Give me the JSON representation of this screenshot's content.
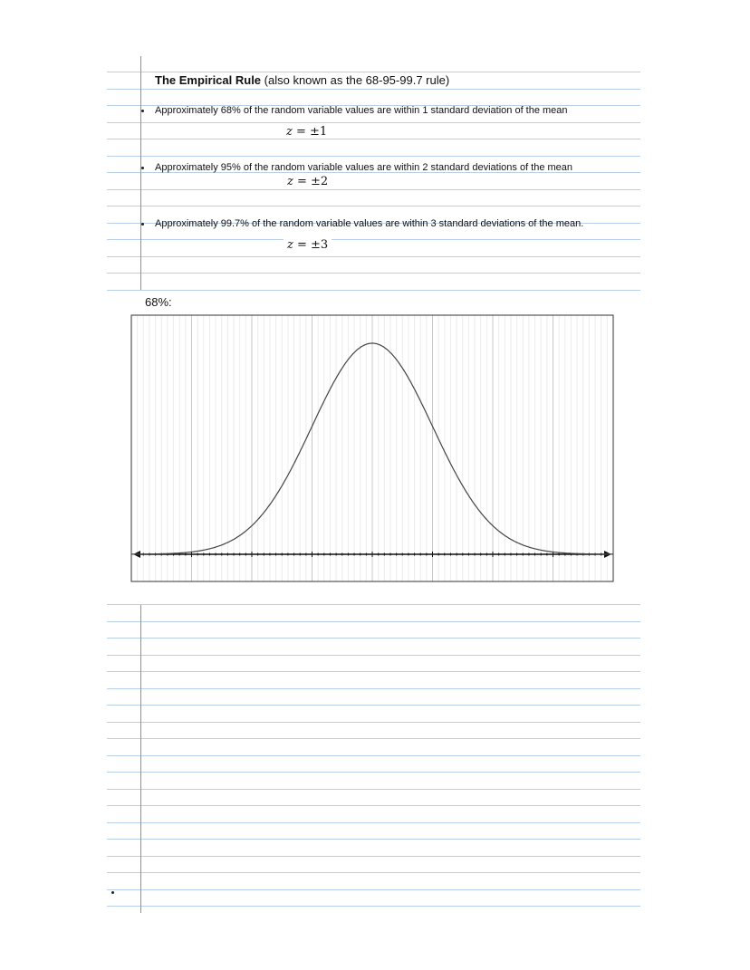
{
  "document": {
    "title_bold": "The Empirical Rule",
    "title_rest": " (also known as the 68-95-99.7 rule)",
    "items": [
      {
        "text": "Approximately 68% of the random variable values are within 1 standard deviation of the mean",
        "z_var": "z",
        "z_rest": " = ±1"
      },
      {
        "text": "Approximately 95% of the random variable values are within 2 standard deviations of the mean",
        "z_var": "z",
        "z_rest": " = ±2"
      },
      {
        "text": "Approximately 99.7% of the random variable values are within 3 standard deviations of the mean.",
        "z_var": "z",
        "z_rest": " = ±3"
      }
    ],
    "figure_label": "68%:"
  },
  "colors": {
    "rule_line": "#b9cfe6",
    "margin_line": "#e0706a",
    "curve": "#444444",
    "grid": "#d0d0d0"
  },
  "chart_data": {
    "type": "line",
    "description_of_curve": "standard normal density",
    "x_range": [
      -4,
      4
    ],
    "major_grid_step": 1,
    "minor_grid_step": 0.1,
    "mean": 0,
    "sd": 1,
    "grid": true,
    "axis_arrows": true
  }
}
